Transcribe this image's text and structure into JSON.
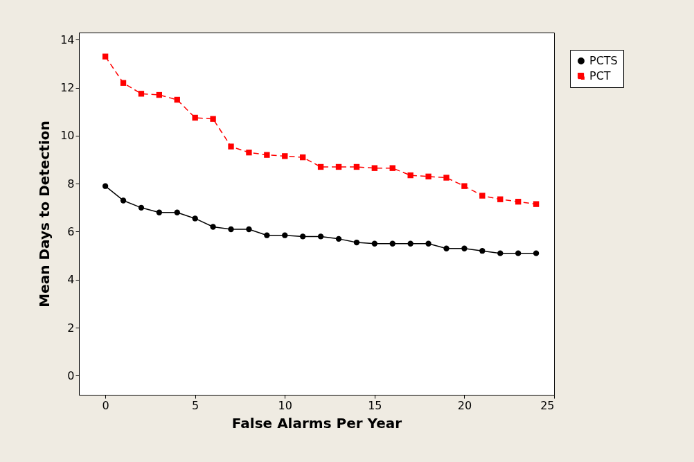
{
  "chart_data": {
    "type": "line",
    "xlabel": "False Alarms Per Year",
    "ylabel": "Mean Days to Detection",
    "x": [
      0,
      1,
      2,
      3,
      4,
      5,
      6,
      7,
      8,
      9,
      10,
      11,
      12,
      13,
      14,
      15,
      16,
      17,
      18,
      19,
      20,
      21,
      22,
      23,
      24
    ],
    "series": [
      {
        "name": "PCTS",
        "color": "#000000",
        "marker": "circle",
        "line_style": "solid",
        "values": [
          7.9,
          7.3,
          7.0,
          6.8,
          6.8,
          6.55,
          6.2,
          6.1,
          6.1,
          5.85,
          5.85,
          5.8,
          5.8,
          5.7,
          5.55,
          5.5,
          5.5,
          5.5,
          5.5,
          5.3,
          5.3,
          5.2,
          5.1,
          5.1,
          5.1
        ]
      },
      {
        "name": "PCT",
        "color": "#ff0000",
        "marker": "square",
        "line_style": "dashed",
        "values": [
          13.3,
          12.2,
          11.75,
          11.7,
          11.5,
          10.75,
          10.7,
          9.55,
          9.3,
          9.2,
          9.15,
          9.1,
          8.7,
          8.7,
          8.7,
          8.65,
          8.65,
          8.35,
          8.3,
          8.25,
          7.9,
          7.5,
          7.35,
          7.25,
          7.15
        ]
      }
    ],
    "xlim": [
      -1.47,
      25
    ],
    "ylim": [
      -0.8,
      14.3
    ],
    "xticks": [
      0,
      5,
      10,
      15,
      20,
      25
    ],
    "yticks": [
      0,
      2,
      4,
      6,
      8,
      10,
      12,
      14
    ],
    "grid": false,
    "legend": "top right"
  }
}
